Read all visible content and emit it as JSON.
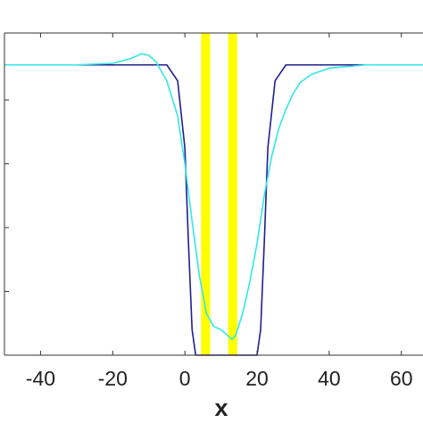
{
  "chart_data": {
    "type": "line",
    "title": "",
    "xlabel": "x",
    "ylabel": "",
    "xlim": [
      -50,
      66
    ],
    "ylim": [
      0,
      1.01
    ],
    "x_ticks": [
      -40,
      -20,
      0,
      20,
      40,
      60
    ],
    "x_tick_labels": [
      "-40",
      "-20",
      "0",
      "20",
      "40",
      "60"
    ],
    "y_ticks": [
      0.2,
      0.4,
      0.6,
      0.8
    ],
    "grid": false,
    "legend": "none",
    "highlight_bands": [
      {
        "x": [
          4.5,
          7.0
        ],
        "color": "#ffff00"
      },
      {
        "x": [
          12.0,
          14.5
        ],
        "color": "#ffff00"
      }
    ],
    "series": [
      {
        "color": "#1f1f8f",
        "x": [
          -50,
          -20,
          -5,
          -2,
          0,
          1,
          2,
          3,
          20,
          21,
          22,
          23,
          25,
          28,
          40,
          66
        ],
        "y": [
          0.91,
          0.91,
          0.91,
          0.86,
          0.65,
          0.35,
          0.08,
          0.0,
          0.0,
          0.08,
          0.35,
          0.65,
          0.86,
          0.91,
          0.91,
          0.91
        ]
      },
      {
        "color": "#33e6e6",
        "x": [
          -50,
          -30,
          -20,
          -15,
          -12,
          -10,
          -8,
          -5,
          -2,
          0,
          2,
          4,
          6,
          8,
          10,
          12,
          13,
          14,
          16,
          18,
          20,
          22,
          24,
          26,
          28,
          30,
          32,
          35,
          40,
          45,
          50,
          66
        ],
        "y": [
          0.91,
          0.91,
          0.915,
          0.93,
          0.945,
          0.94,
          0.92,
          0.86,
          0.75,
          0.6,
          0.42,
          0.25,
          0.13,
          0.09,
          0.08,
          0.06,
          0.05,
          0.06,
          0.13,
          0.23,
          0.35,
          0.5,
          0.62,
          0.71,
          0.77,
          0.82,
          0.855,
          0.88,
          0.9,
          0.905,
          0.91,
          0.91
        ]
      }
    ]
  }
}
